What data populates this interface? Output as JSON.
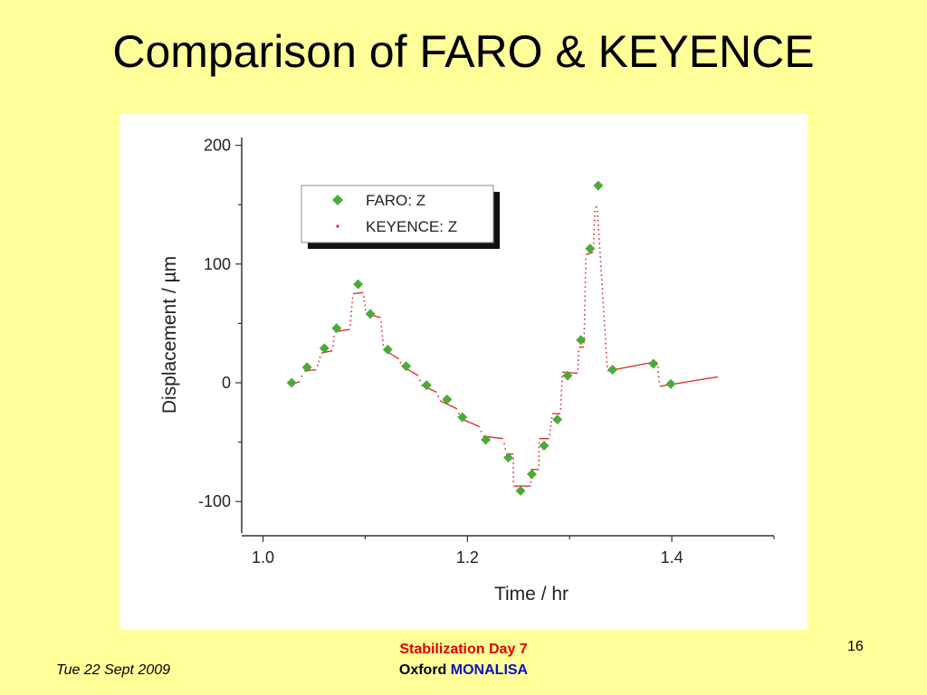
{
  "slide": {
    "title": "Comparison of FARO & KEYENCE",
    "footer_date": "Tue 22 Sept 2009",
    "footer_line1": "Stabilization Day 7",
    "footer_line2_a": "Oxford",
    "footer_line2_b": "MONALISA",
    "page_number": "16"
  },
  "chart_data": {
    "type": "scatter",
    "xlabel": "Time / hr",
    "ylabel": "Displacement / µm",
    "xlim": [
      0.98,
      1.5
    ],
    "ylim": [
      -125,
      205
    ],
    "xticks": [
      "1.0",
      "1.2",
      "1.4"
    ],
    "yticks": [
      "200",
      "100",
      "0",
      "-100"
    ],
    "legend_position": "top-left-inside",
    "colors": {
      "faro": "#4daa3a",
      "keyence": "#e03030"
    },
    "series": [
      {
        "name": "FARO: Z",
        "marker": "diamond",
        "x": [
          1.028,
          1.043,
          1.06,
          1.072,
          1.093,
          1.105,
          1.122,
          1.14,
          1.16,
          1.18,
          1.195,
          1.218,
          1.24,
          1.252,
          1.263,
          1.275,
          1.288,
          1.298,
          1.311,
          1.32,
          1.328,
          1.342,
          1.382,
          1.399
        ],
        "y": [
          0,
          13,
          29,
          46,
          83,
          58,
          28,
          14,
          -2,
          -14,
          -29,
          -48,
          -63,
          -91,
          -77,
          -53,
          -31,
          6,
          36,
          113,
          166,
          11,
          16,
          -1
        ]
      },
      {
        "name": "KEYENCE: Z",
        "marker": "dot",
        "steps": [
          [
            1.026,
            1.036,
            -2,
            1
          ],
          [
            1.04,
            1.052,
            10,
            11
          ],
          [
            1.057,
            1.068,
            25,
            27
          ],
          [
            1.07,
            1.085,
            43,
            45
          ],
          [
            1.088,
            1.098,
            75,
            76
          ],
          [
            1.101,
            1.115,
            58,
            55
          ],
          [
            1.118,
            1.133,
            28,
            20
          ],
          [
            1.136,
            1.152,
            14,
            6
          ],
          [
            1.155,
            1.17,
            -2,
            -8
          ],
          [
            1.173,
            1.19,
            -15,
            -22
          ],
          [
            1.193,
            1.212,
            -30,
            -37
          ],
          [
            1.215,
            1.235,
            -45,
            -47
          ],
          [
            1.238,
            1.245,
            -60,
            -60
          ],
          [
            1.245,
            1.262,
            -87,
            -87
          ],
          [
            1.262,
            1.27,
            -73,
            -73
          ],
          [
            1.27,
            1.28,
            -47,
            -47
          ],
          [
            1.283,
            1.291,
            -26,
            -26
          ],
          [
            1.293,
            1.308,
            9,
            8
          ],
          [
            1.309,
            1.314,
            30,
            30
          ],
          [
            1.316,
            1.323,
            108,
            110
          ],
          [
            1.325,
            1.327,
            148,
            148
          ],
          [
            1.337,
            1.38,
            10,
            17
          ],
          [
            1.383,
            1.386,
            17,
            17
          ],
          [
            1.388,
            1.445,
            -3,
            5
          ]
        ]
      }
    ]
  }
}
